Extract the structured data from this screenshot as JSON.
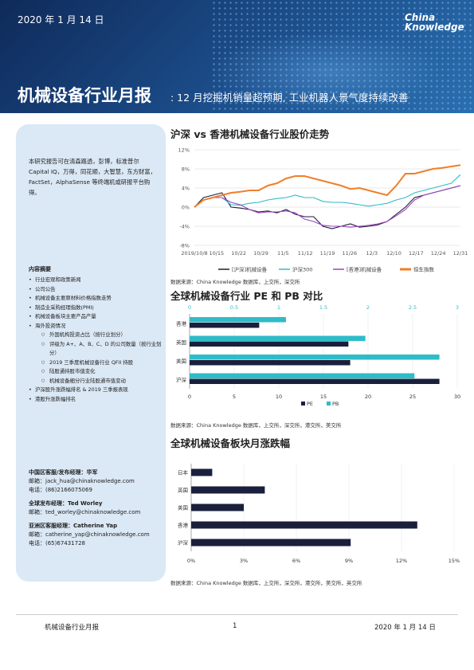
{
  "header": {
    "date": "2020 年 1 月 14 日",
    "logo_line1": "China",
    "logo_line2": "Knowledge",
    "title": "机械设备行业月报",
    "subtitle": ": 12 月挖掘机销量超预期, 工业机器人景气度持续改善"
  },
  "sidebar": {
    "intro": "本研究报告可在清森路透，彭博，标准普尔 Capital IQ，万得，同花顺，大智慧，东方财富，FactSet，AlphaSense 等终端机或研报平台购得。",
    "toc_title": "内容摘要",
    "toc": [
      {
        "level": 1,
        "text": "行业宏观和政策新闻"
      },
      {
        "level": 1,
        "text": "公司公告"
      },
      {
        "level": 1,
        "text": "机械设备主要原材料价格指数走势"
      },
      {
        "level": 1,
        "text": "制造业采购经理指数(PMI)"
      },
      {
        "level": 1,
        "text": "机械设备板块主要产品产量"
      },
      {
        "level": 1,
        "text": "海外投资情况"
      },
      {
        "level": 2,
        "text": "外国机构投资占比（按行业划分）"
      },
      {
        "level": 2,
        "text": "评级为 A+、A、B、C、D 的公司数量（按行业划分）"
      },
      {
        "level": 2,
        "text": "2019 三季度机械设备行业 QFII 持股"
      },
      {
        "level": 2,
        "text": "陆股通持股市值变化"
      },
      {
        "level": 2,
        "text": "机械设备细分行业陆股通市值变动"
      },
      {
        "level": 1,
        "text": "沪深股升涨跌幅排名 & 2019 三季报表现"
      },
      {
        "level": 1,
        "text": "港股升涨跌幅排名"
      }
    ],
    "contacts": [
      {
        "role": "中国区客服/发布经理：华军",
        "email": "邮箱：jack_hua@chinaknowledge.com",
        "phone": "电话：(86)2166075069"
      },
      {
        "role": "全球发布经理：Ted Worley",
        "email": "邮箱：ted_worley@chinaknowledge.com",
        "phone": ""
      },
      {
        "role": "亚洲区客服经理：Catherine Yap",
        "email": "邮箱：catherine_yap@chinaknowledge.com",
        "phone": "电话：(65)67431728"
      }
    ]
  },
  "chart1_source": "数据来源：China Knowledge 数据库，上交所，深交所",
  "chart2_source": "数据来源：China Knowledge 数据库，上交所，深交所，港交所，美交所",
  "chart3_source": "数据来源：China Knowledge 数据库，上交所，深交所，港交所，美交所，英交所",
  "footer": {
    "left": "机械设备行业月报",
    "page": "1",
    "right": "2020 年 1 月 14 日"
  },
  "colors": {
    "dark": "#1a1f3c",
    "cyan": "#2ebcc8",
    "purple": "#a042c0",
    "orange": "#f07f2a"
  },
  "chart_data": [
    {
      "type": "line",
      "title": "沪深 vs 香港机械设备行业股价走势",
      "x_ticks": [
        "2019/10/8",
        "10/15",
        "10/22",
        "10/29",
        "11/5",
        "11/12",
        "11/19",
        "11/26",
        "12/3",
        "12/10",
        "12/17",
        "12/24",
        "12/31"
      ],
      "ylim": [
        -8,
        12
      ],
      "y_ticks": [
        "12%",
        "8%",
        "4%",
        "0%",
        "-4%",
        "-8%"
      ],
      "y_tick_values": [
        12,
        8,
        4,
        0,
        -4,
        -8
      ],
      "series": [
        {
          "name": "[沪深]机械设备",
          "color": "#1a1f3c",
          "values": [
            0,
            2,
            2.5,
            3,
            0,
            -0.2,
            -0.5,
            -1,
            -0.8,
            -1.2,
            -0.5,
            -1.5,
            -2,
            -2,
            -4,
            -4.5,
            -4,
            -3.5,
            -4.2,
            -4,
            -3.7,
            -3,
            -1.5,
            0,
            2,
            2.5,
            3,
            3.5,
            4,
            4.5
          ]
        },
        {
          "name": "沪深300",
          "color": "#2ebcc8",
          "values": [
            0,
            1.5,
            2,
            2,
            0.5,
            0.4,
            0.8,
            1,
            1.5,
            1.8,
            2,
            2.5,
            2,
            2,
            1.2,
            1,
            1,
            0.8,
            0.5,
            0.2,
            0.5,
            0.8,
            1.5,
            2,
            3,
            3.5,
            4,
            4.5,
            5,
            6.8
          ]
        },
        {
          "name": "[香港]机械设备",
          "color": "#a042c0",
          "values": [
            0,
            1.5,
            2,
            2,
            1,
            0.5,
            -0.5,
            -1.2,
            -1,
            -1,
            -0.8,
            -1.2,
            -2.5,
            -3,
            -3.8,
            -4,
            -4,
            -4.2,
            -4,
            -3.8,
            -3.5,
            -3,
            -1.8,
            -0.5,
            1.5,
            2.5,
            3,
            3.5,
            4,
            4.5
          ]
        },
        {
          "name": "恒生指数",
          "color": "#f07f2a",
          "values": [
            0,
            1.5,
            2,
            2.5,
            3,
            3.2,
            3.5,
            3.5,
            4.5,
            5,
            6,
            6.5,
            6.5,
            6,
            5.5,
            5,
            4.5,
            3.8,
            4,
            3.5,
            3,
            2.5,
            4.5,
            7,
            7,
            7.5,
            8,
            8.2,
            8.5,
            8.8
          ]
        }
      ]
    },
    {
      "type": "bar",
      "title": "全球机械设备行业 PE 和 PB 对比",
      "categories": [
        "香港",
        "英国",
        "美国",
        "沪深"
      ],
      "pe_axis": [
        0,
        30
      ],
      "pe_ticks": [
        "0",
        "5",
        "10",
        "15",
        "20",
        "25",
        "30"
      ],
      "pe_tick_values": [
        0,
        5,
        10,
        15,
        20,
        25,
        30
      ],
      "pb_axis": [
        0,
        3
      ],
      "pb_ticks": [
        "0",
        "0.5",
        "1",
        "1.5",
        "2",
        "2.5",
        "3"
      ],
      "pb_tick_values": [
        0,
        0.5,
        1,
        1.5,
        2,
        2.5,
        3
      ],
      "series": [
        {
          "name": "PE",
          "color": "#1a1f3c",
          "values": [
            7.8,
            17.8,
            18,
            28
          ]
        },
        {
          "name": "PB",
          "color": "#2ebcc8",
          "values": [
            1.08,
            1.97,
            2.8,
            2.52
          ]
        }
      ]
    },
    {
      "type": "bar",
      "title": "全球机械设备板块月涨跌幅",
      "categories": [
        "日本",
        "英国",
        "美国",
        "香港",
        "沪深"
      ],
      "values": [
        1.2,
        4.2,
        3.0,
        12.9,
        9.1
      ],
      "xlim": [
        0,
        15
      ],
      "x_ticks": [
        "0%",
        "3%",
        "6%",
        "9%",
        "12%",
        "15%"
      ],
      "x_tick_values": [
        0,
        3,
        6,
        9,
        12,
        15
      ],
      "color": "#1a1f3c"
    }
  ]
}
